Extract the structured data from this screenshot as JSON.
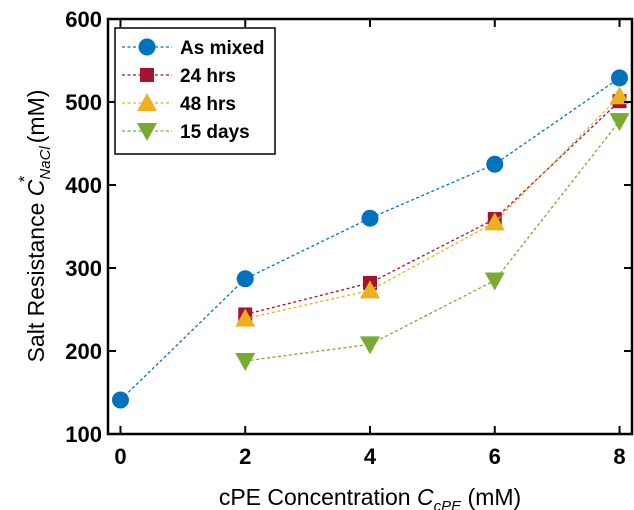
{
  "chart_data": {
    "type": "scatter",
    "xlabel_parts": {
      "main": "cPE Concentration ",
      "var": "C",
      "sub": "cPE",
      "unit": " (mM)"
    },
    "ylabel_parts": {
      "main": "Salt Resistance ",
      "var": "C",
      "sub": "NaCl",
      "sup": "*",
      "unit": " (mM)"
    },
    "xlim": [
      -0.2,
      8.2
    ],
    "ylim": [
      100,
      600
    ],
    "xticks": [
      0,
      2,
      4,
      6,
      8
    ],
    "yticks": [
      100,
      200,
      300,
      400,
      500,
      600
    ],
    "grid": false,
    "legend_position": "top-left",
    "series": [
      {
        "name": "As mixed",
        "marker": "circle",
        "color": "#0072bd",
        "x": [
          0,
          2,
          4,
          6,
          8
        ],
        "y": [
          141,
          287,
          360,
          425,
          529
        ]
      },
      {
        "name": "24 hrs",
        "marker": "square",
        "color": "#a2142f",
        "x": [
          2,
          4,
          6,
          8
        ],
        "y": [
          244,
          282,
          359,
          501
        ]
      },
      {
        "name": "48 hrs",
        "marker": "triangle-up",
        "color": "#edb120",
        "x": [
          2,
          4,
          6,
          8
        ],
        "y": [
          239,
          273,
          355,
          507
        ]
      },
      {
        "name": "15 days",
        "marker": "triangle-down",
        "color": "#77ac30",
        "x": [
          2,
          4,
          6,
          8
        ],
        "y": [
          188,
          208,
          285,
          477
        ]
      }
    ]
  }
}
